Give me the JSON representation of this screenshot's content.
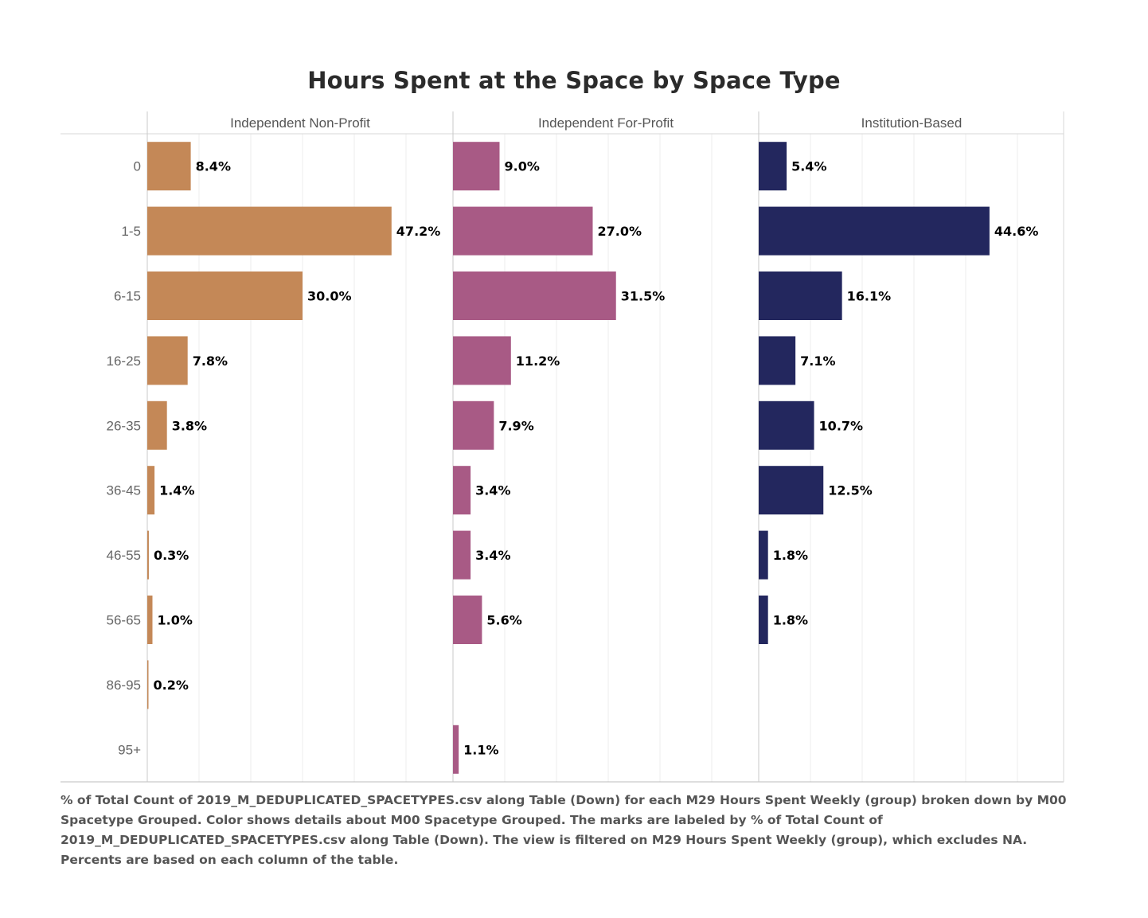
{
  "chart_data": {
    "type": "bar",
    "orientation": "horizontal",
    "title": "Hours Spent at the Space by Space Type",
    "categories": [
      "0",
      "1-5",
      "6-15",
      "16-25",
      "26-35",
      "36-45",
      "46-55",
      "56-65",
      "86-95",
      "95+"
    ],
    "series": [
      {
        "name": "Independent Non-Profit",
        "color": "#C48857",
        "values": [
          8.4,
          47.2,
          30.0,
          7.8,
          3.8,
          1.4,
          0.3,
          1.0,
          0.2,
          null
        ],
        "labels": [
          "8.4%",
          "47.2%",
          "30.0%",
          "7.8%",
          "3.8%",
          "1.4%",
          "0.3%",
          "1.0%",
          "0.2%",
          null
        ]
      },
      {
        "name": "Independent For-Profit",
        "color": "#A85A85",
        "values": [
          9.0,
          27.0,
          31.5,
          11.2,
          7.9,
          3.4,
          3.4,
          5.6,
          null,
          1.1
        ],
        "labels": [
          "9.0%",
          "27.0%",
          "31.5%",
          "11.2%",
          "7.9%",
          "3.4%",
          "3.4%",
          "5.6%",
          null,
          "1.1%"
        ]
      },
      {
        "name": "Institution-Based",
        "color": "#23275E",
        "values": [
          5.4,
          44.6,
          16.1,
          7.1,
          10.7,
          12.5,
          1.8,
          1.8,
          null,
          null
        ],
        "labels": [
          "5.4%",
          "44.6%",
          "16.1%",
          "7.1%",
          "10.7%",
          "12.5%",
          "1.8%",
          "1.8%",
          null,
          null
        ]
      }
    ],
    "xlim": [
      0,
      58
    ],
    "grid": true,
    "legend": "none"
  },
  "caption": "% of Total Count of 2019_M_DEDUPLICATED_SPACETYPES.csv along Table (Down) for each M29 Hours Spent Weekly (group) broken down by M00 Spacetype Grouped.  Color shows details about M00 Spacetype Grouped.  The marks are labeled by % of Total Count of 2019_M_DEDUPLICATED_SPACETYPES.csv along Table (Down). The view is filtered on M29 Hours Spent Weekly (group), which excludes NA. Percents are based on each column of the table."
}
